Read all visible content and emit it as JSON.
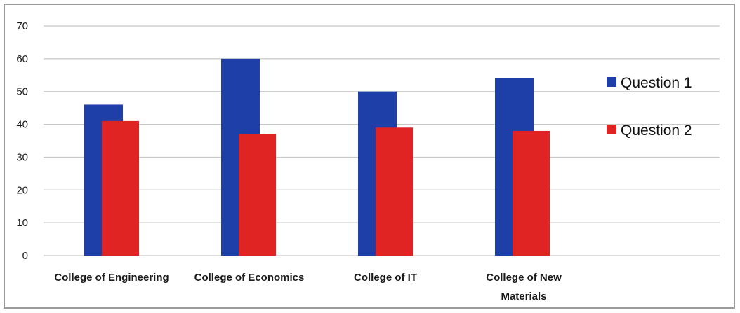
{
  "chart_data": {
    "type": "bar",
    "title": "",
    "xlabel": "",
    "ylabel": "",
    "categories": [
      [
        "College of Engineering"
      ],
      [
        "College of Economics"
      ],
      [
        "College of IT"
      ],
      [
        "College of New",
        "Materials"
      ]
    ],
    "series": [
      {
        "name": "Question 1",
        "color": "#1f3fa8",
        "values": [
          46,
          60,
          50,
          54
        ]
      },
      {
        "name": "Question 2",
        "color": "#e02424",
        "values": [
          41,
          37,
          39,
          38
        ]
      }
    ],
    "ylim": [
      0,
      70
    ],
    "yticks": [
      0,
      10,
      20,
      30,
      40,
      50,
      60,
      70
    ],
    "grid": true,
    "legend_position": "right"
  }
}
